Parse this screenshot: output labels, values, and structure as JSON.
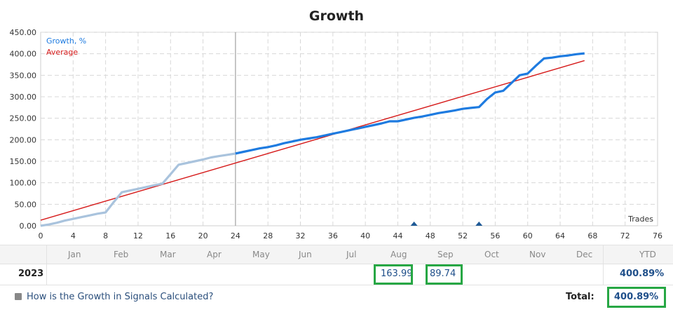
{
  "chart_data": {
    "type": "line",
    "title": "Growth",
    "xlabel": "Trades",
    "ylabel": "",
    "xlim": [
      0,
      76
    ],
    "ylim": [
      0,
      450
    ],
    "x_ticks": [
      0,
      4,
      8,
      12,
      16,
      20,
      24,
      28,
      32,
      36,
      40,
      44,
      48,
      52,
      56,
      60,
      64,
      68,
      72,
      76
    ],
    "y_ticks": [
      "0.00",
      "50.00",
      "100.00",
      "150.00",
      "200.00",
      "250.00",
      "300.00",
      "350.00",
      "400.00",
      "450.00"
    ],
    "y_tick_values": [
      0,
      50,
      100,
      150,
      200,
      250,
      300,
      350,
      400,
      450
    ],
    "grid": true,
    "legend": "top-left",
    "divider_x": 24,
    "markers_x": [
      46,
      54
    ],
    "series": [
      {
        "name": "Growth, %",
        "color": "#1e7be0",
        "faded_color": "#a9c3dd",
        "faded_until_x": 24,
        "x": [
          0,
          1,
          2,
          3,
          4,
          5,
          6,
          7,
          8,
          9,
          10,
          11,
          12,
          13,
          14,
          15,
          16,
          17,
          18,
          19,
          20,
          21,
          22,
          23,
          24,
          25,
          26,
          27,
          28,
          29,
          30,
          31,
          32,
          33,
          34,
          35,
          36,
          37,
          38,
          39,
          40,
          41,
          42,
          43,
          44,
          45,
          46,
          47,
          48,
          49,
          50,
          51,
          52,
          53,
          54,
          55,
          56,
          57,
          58,
          59,
          60,
          61,
          62,
          63,
          64,
          65,
          66,
          67
        ],
        "values": [
          0,
          3,
          7,
          12,
          16,
          20,
          24,
          28,
          31,
          55,
          78,
          82,
          86,
          90,
          94,
          98,
          120,
          142,
          146,
          150,
          154,
          159,
          162,
          165,
          168,
          172,
          176,
          180,
          183,
          187,
          192,
          196,
          200,
          203,
          206,
          210,
          214,
          218,
          222,
          226,
          230,
          234,
          238,
          243,
          243,
          247,
          251,
          254,
          258,
          262,
          265,
          268,
          272,
          274,
          276,
          295,
          310,
          314,
          332,
          350,
          354,
          372,
          389,
          391,
          394,
          396,
          399,
          401
        ]
      },
      {
        "name": "Average",
        "color": "#d61b1b",
        "x": [
          0,
          67
        ],
        "values": [
          13,
          384
        ]
      }
    ]
  },
  "table": {
    "months": [
      "Jan",
      "Feb",
      "Mar",
      "Apr",
      "May",
      "Jun",
      "Jul",
      "Aug",
      "Sep",
      "Oct",
      "Nov",
      "Dec"
    ],
    "ytd_label": "YTD",
    "year": "2023",
    "aug_value": "163.99",
    "sep_value": "89.74",
    "ytd_value": "400.89%"
  },
  "footer": {
    "link_text": "How is the Growth in Signals Calculated?",
    "total_label": "Total:",
    "total_value": "400.89%"
  }
}
